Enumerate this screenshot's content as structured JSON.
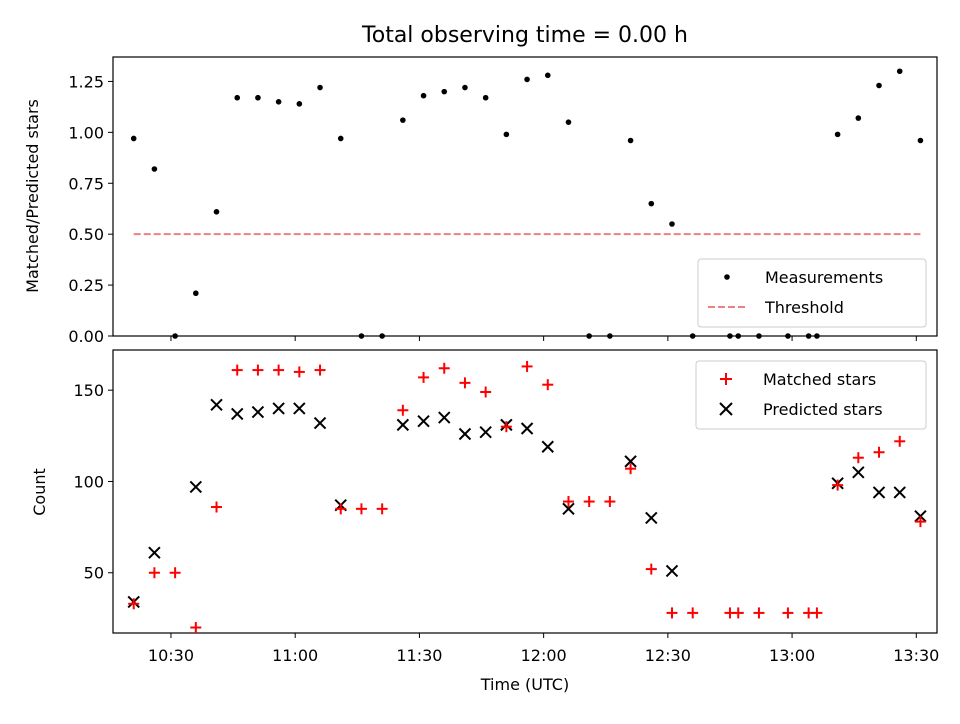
{
  "chart_data": [
    {
      "type": "scatter",
      "title": "Total observing time = 0.00 h",
      "xlabel": "",
      "ylabel": "Matched/Predicted stars",
      "xlim": [
        "10:16",
        "13:35"
      ],
      "ylim": [
        0,
        1.37
      ],
      "yticks": [
        "0.00",
        "0.25",
        "0.50",
        "0.75",
        "1.00",
        "1.25"
      ],
      "legend_position": "lower-right",
      "series": [
        {
          "name": "Measurements",
          "color": "#000000",
          "marker": "dot",
          "x": [
            "10:21",
            "10:26",
            "10:31",
            "10:36",
            "10:41",
            "10:46",
            "10:51",
            "10:56",
            "11:01",
            "11:06",
            "11:11",
            "11:16",
            "11:21",
            "11:26",
            "11:31",
            "11:36",
            "11:41",
            "11:46",
            "11:51",
            "11:56",
            "12:01",
            "12:06",
            "12:11",
            "12:16",
            "12:21",
            "12:26",
            "12:31",
            "12:36",
            "12:45",
            "12:47",
            "12:52",
            "12:59",
            "13:04",
            "13:06",
            "13:11",
            "13:16",
            "13:21",
            "13:26",
            "13:31"
          ],
          "y": [
            0.97,
            0.82,
            0.0,
            0.21,
            0.61,
            1.17,
            1.17,
            1.15,
            1.14,
            1.22,
            0.97,
            0.0,
            0.0,
            1.06,
            1.18,
            1.2,
            1.22,
            1.17,
            0.99,
            1.26,
            1.28,
            1.05,
            0.0,
            0.0,
            0.96,
            0.65,
            0.55,
            0.0,
            0.0,
            0.0,
            0.0,
            0.0,
            0.0,
            0.0,
            0.99,
            1.07,
            1.23,
            1.3,
            0.96
          ]
        },
        {
          "name": "Threshold",
          "color": "#f08080",
          "style": "dashed",
          "x": [
            "10:21",
            "13:31"
          ],
          "y": [
            0.5,
            0.5
          ]
        }
      ]
    },
    {
      "type": "scatter",
      "title": "",
      "xlabel": "Time (UTC)",
      "ylabel": "Count",
      "xlim": [
        "10:16",
        "13:35"
      ],
      "ylim": [
        17,
        172
      ],
      "xticks": [
        "10:30",
        "11:00",
        "11:30",
        "12:00",
        "12:30",
        "13:00",
        "13:30"
      ],
      "yticks": [
        "50",
        "100",
        "150"
      ],
      "legend_position": "upper-right",
      "series": [
        {
          "name": "Matched stars",
          "color": "#ff0000",
          "marker": "plus",
          "x": [
            "10:21",
            "10:26",
            "10:31",
            "10:36",
            "10:41",
            "10:46",
            "10:51",
            "10:56",
            "11:01",
            "11:06",
            "11:11",
            "11:16",
            "11:21",
            "11:26",
            "11:31",
            "11:36",
            "11:41",
            "11:46",
            "11:51",
            "11:56",
            "12:01",
            "12:06",
            "12:11",
            "12:16",
            "12:21",
            "12:26",
            "12:31",
            "12:36",
            "12:45",
            "12:47",
            "12:52",
            "12:59",
            "13:04",
            "13:06",
            "13:11",
            "13:16",
            "13:21",
            "13:26",
            "13:31"
          ],
          "y": [
            33,
            50,
            50,
            20,
            86,
            161,
            161,
            161,
            160,
            161,
            85,
            85,
            85,
            139,
            157,
            162,
            154,
            149,
            130,
            163,
            153,
            89,
            89,
            89,
            107,
            52,
            28,
            28,
            28,
            28,
            28,
            28,
            28,
            28,
            98,
            113,
            116,
            122,
            78
          ]
        },
        {
          "name": "Predicted stars",
          "color": "#000000",
          "marker": "x",
          "x": [
            "10:21",
            "10:26",
            "10:36",
            "10:41",
            "10:46",
            "10:51",
            "10:56",
            "11:01",
            "11:06",
            "11:11",
            "11:26",
            "11:31",
            "11:36",
            "11:41",
            "11:46",
            "11:51",
            "11:56",
            "12:01",
            "12:06",
            "12:21",
            "12:26",
            "12:31",
            "13:11",
            "13:16",
            "13:21",
            "13:26",
            "13:31"
          ],
          "y": [
            34,
            61,
            97,
            142,
            137,
            138,
            140,
            140,
            132,
            87,
            131,
            133,
            135,
            126,
            127,
            131,
            129,
            119,
            85,
            111,
            80,
            51,
            99,
            105,
            94,
            94,
            81
          ]
        }
      ]
    }
  ]
}
